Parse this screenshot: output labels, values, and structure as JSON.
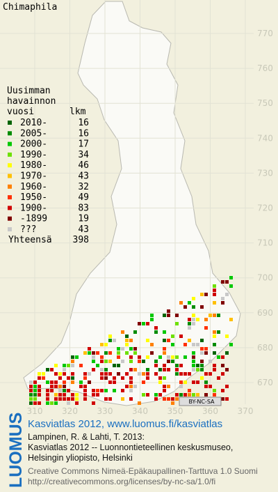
{
  "title": "Chimaphila",
  "legend": {
    "heading": [
      "Uusimman",
      "havainnon"
    ],
    "col_year": "vuosi",
    "col_count": "lkm",
    "rows": [
      {
        "label": "2010-",
        "count": 16,
        "color": "#006400"
      },
      {
        "label": "2005-",
        "count": 16,
        "color": "#008c00"
      },
      {
        "label": "2000-",
        "count": 17,
        "color": "#00c800"
      },
      {
        "label": "1990-",
        "count": 34,
        "color": "#6ee000"
      },
      {
        "label": "1980-",
        "count": 46,
        "color": "#ffff00"
      },
      {
        "label": "1970-",
        "count": 43,
        "color": "#ffc000"
      },
      {
        "label": "1960-",
        "count": 32,
        "color": "#ff8000"
      },
      {
        "label": "1950-",
        "count": 49,
        "color": "#ff3000"
      },
      {
        "label": "1900-",
        "count": 83,
        "color": "#d00000"
      },
      {
        "label": "-1899",
        "count": 19,
        "color": "#800000"
      },
      {
        "label": "???",
        "count": 43,
        "color": "#c8c8c8"
      }
    ],
    "total_label": "Yhteensä",
    "total": 398
  },
  "grid": {
    "northing": [
      770,
      760,
      750,
      740,
      730,
      720,
      710,
      700,
      690,
      680,
      670
    ],
    "easting": [
      310,
      320,
      330,
      340,
      350,
      360,
      370
    ]
  },
  "badge": "BY-NC-SA",
  "footer": {
    "logo": "LUOMUS",
    "link": "Kasviatlas 2012, www.luomus.fi/kasviatlas",
    "citation": [
      "Lampinen, R. & Lahti, T. 2013:",
      "Kasviatlas 2012 -- Luonnontieteellinen keskusmuseo,",
      "Helsingin yliopisto, Helsinki"
    ],
    "license": [
      "Creative Commons Nimeä-Epäkaupallinen-Tarttuva 1.0 Suomi",
      "http://creativecommons.org/licenses/by-nc-sa/1.0/fi"
    ]
  }
}
